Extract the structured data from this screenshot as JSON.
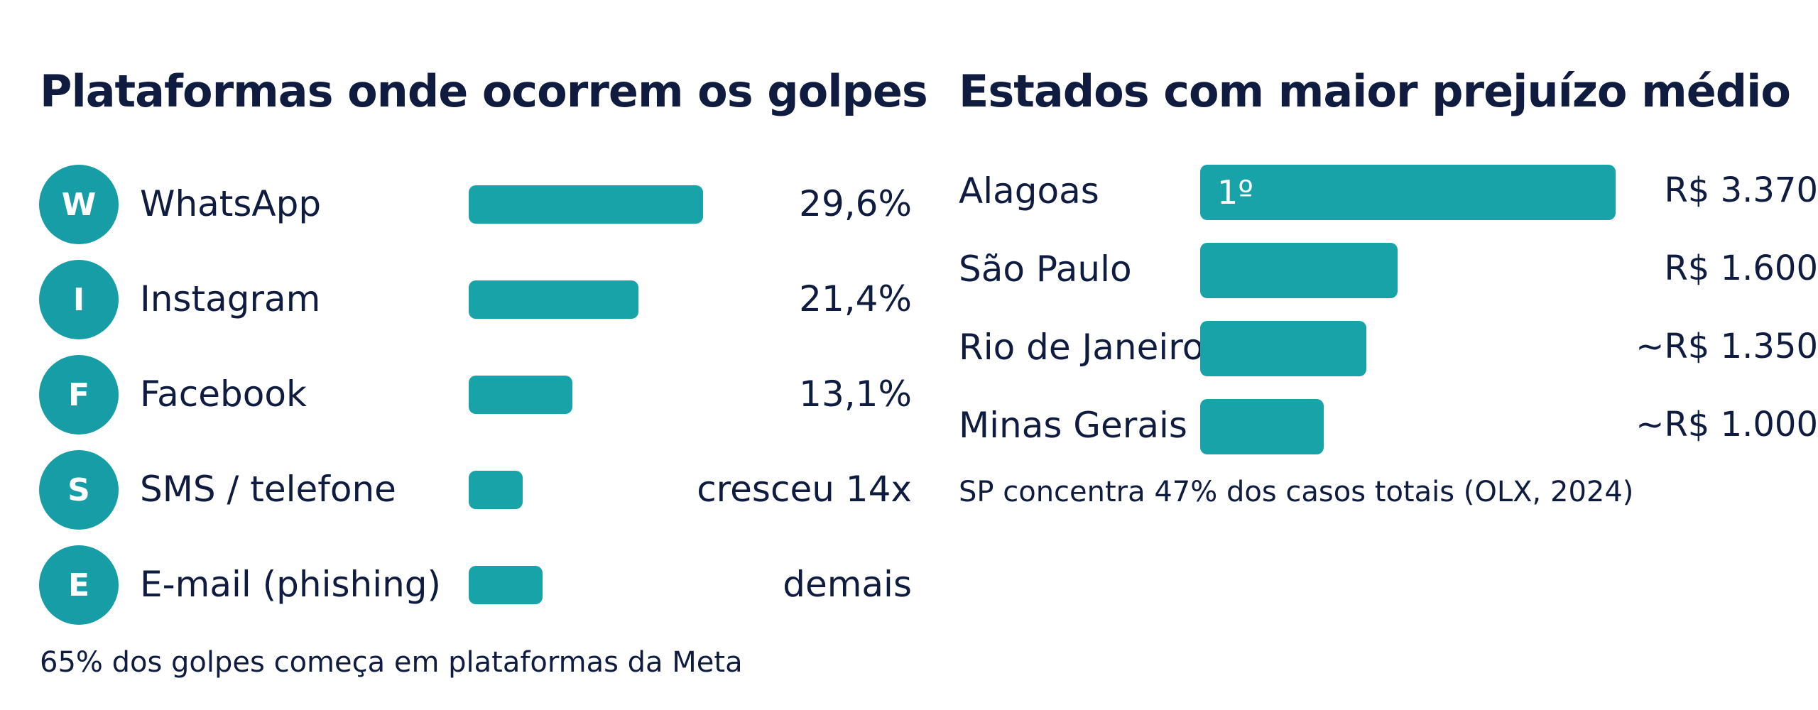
{
  "left": {
    "title": "Plataformas onde ocorrem os golpes",
    "footnote": "65% dos golpes começa em plataformas da Meta"
  },
  "right": {
    "title": "Estados com maior prejuízo médio",
    "footnote": "SP concentra 47% dos casos totais (OLX, 2024)"
  },
  "chart_data": [
    {
      "type": "bar",
      "orientation": "horizontal",
      "title": "Plataformas onde ocorrem os golpes",
      "categories": [
        "WhatsApp",
        "Instagram",
        "Facebook",
        "SMS / telefone",
        "E-mail (phishing)"
      ],
      "badges": [
        "W",
        "I",
        "F",
        "S",
        "E"
      ],
      "values": [
        29.6,
        21.4,
        13.1,
        6.8,
        9.3
      ],
      "value_labels": [
        "29,6%",
        "21,4%",
        "13,1%",
        "cresceu 14x",
        "demais"
      ],
      "unit": "%",
      "color": "#17a3a8",
      "badge_color": "#179da5"
    },
    {
      "type": "bar",
      "orientation": "horizontal",
      "title": "Estados com maior prejuízo médio",
      "categories": [
        "Alagoas",
        "São Paulo",
        "Rio de Janeiro",
        "Minas Gerais"
      ],
      "values": [
        3370,
        1600,
        1350,
        1000
      ],
      "value_labels": [
        "R$ 3.370",
        "R$ 1.600",
        "~R$ 1.350",
        "~R$ 1.000"
      ],
      "bar_labels": [
        "1º",
        "",
        "",
        ""
      ],
      "unit": "R$",
      "color": "#17a3a8"
    }
  ]
}
